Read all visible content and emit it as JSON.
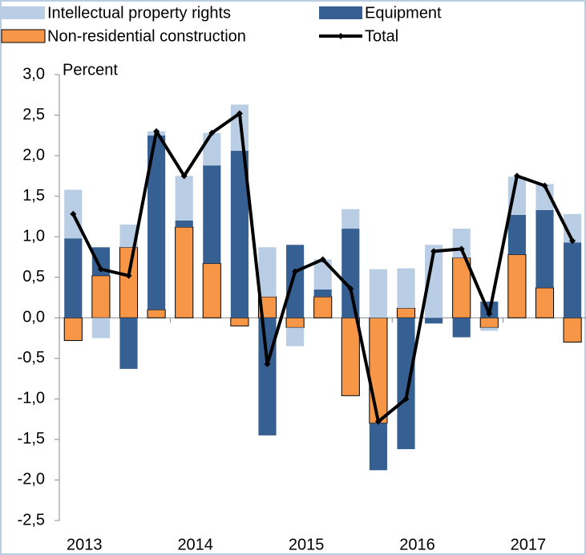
{
  "chart_data": {
    "type": "bar",
    "y_label": "Percent",
    "categories": [
      "2013",
      null,
      null,
      null,
      "2014",
      null,
      null,
      null,
      "2015",
      null,
      null,
      null,
      "2016",
      null,
      null,
      null,
      "2017",
      null,
      null
    ],
    "series": [
      {
        "name": "Non-residential construction",
        "color": "#f79646",
        "values": [
          -0.28,
          0.52,
          0.87,
          0.1,
          1.12,
          0.67,
          -0.1,
          0.26,
          -0.12,
          0.26,
          -0.96,
          -1.3,
          0.12,
          0.0,
          0.74,
          -0.12,
          0.78,
          0.37,
          -0.3
        ]
      },
      {
        "name": "Equipment",
        "color": "#376092",
        "values": [
          0.98,
          0.35,
          -0.63,
          2.15,
          0.08,
          1.21,
          2.06,
          -1.45,
          0.9,
          0.09,
          1.1,
          -0.58,
          -1.62,
          -0.07,
          -0.24,
          0.2,
          0.49,
          0.96,
          0.93
        ]
      },
      {
        "name": "Intellectual property rights",
        "color": "#b9cde5",
        "values": [
          0.6,
          -0.25,
          0.28,
          0.05,
          0.55,
          0.4,
          0.57,
          0.61,
          -0.23,
          0.37,
          0.24,
          0.6,
          0.49,
          0.9,
          0.36,
          -0.04,
          0.47,
          0.32,
          0.35
        ]
      },
      {
        "name": "Total",
        "type": "line",
        "color": "#000000",
        "values": [
          1.28,
          0.6,
          0.52,
          2.3,
          1.75,
          2.28,
          2.52,
          -0.57,
          0.57,
          0.72,
          0.36,
          -1.28,
          -1.0,
          0.82,
          0.85,
          0.05,
          1.75,
          1.63,
          0.95
        ]
      }
    ],
    "ylim": [
      -2.5,
      3.0
    ],
    "yticks": [
      {
        "value": -2.5,
        "label": "-2,5"
      },
      {
        "value": -2.0,
        "label": "-2,0"
      },
      {
        "value": -1.5,
        "label": "-1,5"
      },
      {
        "value": -1.0,
        "label": "-1,0"
      },
      {
        "value": -0.5,
        "label": "-0,5"
      },
      {
        "value": 0.0,
        "label": "0,0"
      },
      {
        "value": 0.5,
        "label": "0,5"
      },
      {
        "value": 1.0,
        "label": "1,0"
      },
      {
        "value": 1.5,
        "label": "1,5"
      },
      {
        "value": 2.0,
        "label": "2,0"
      },
      {
        "value": 2.5,
        "label": "2,5"
      },
      {
        "value": 3.0,
        "label": "3,0"
      }
    ],
    "grid": false
  }
}
